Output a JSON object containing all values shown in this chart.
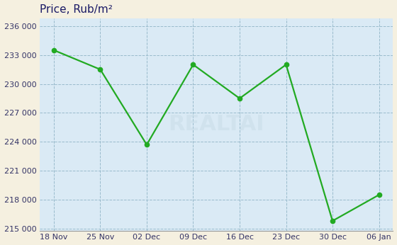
{
  "x_labels": [
    "18 Nov",
    "25 Nov",
    "02 Dec",
    "09 Dec",
    "16 Dec",
    "23 Dec",
    "30 Dec",
    "06 Jan"
  ],
  "y_values": [
    233500,
    231500,
    223700,
    232000,
    228500,
    232000,
    215800,
    218500
  ],
  "y_ticks": [
    215000,
    218000,
    221000,
    224000,
    227000,
    230000,
    233000,
    236000
  ],
  "y_min": 214800,
  "y_max": 236800,
  "title": "Price, Rub/m²",
  "line_color": "#22aa22",
  "marker_color": "#22aa22",
  "bg_color": "#daeaf5",
  "outer_bg": "#f5f0e0",
  "grid_color": "#99bbcc",
  "title_color": "#1a1a66",
  "tick_color": "#333366",
  "line_width": 1.6,
  "marker_size": 4.5,
  "title_fontsize": 11,
  "tick_fontsize": 8
}
